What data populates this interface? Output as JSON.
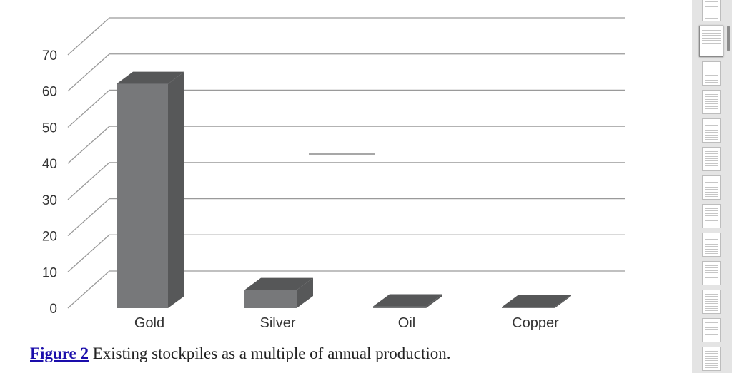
{
  "chart_data": {
    "type": "bar",
    "categories": [
      "Gold",
      "Silver",
      "Oil",
      "Copper"
    ],
    "values": [
      62,
      5,
      0.5,
      0.3
    ],
    "title": "",
    "xlabel": "",
    "ylabel": "",
    "ylim": [
      0,
      70
    ],
    "yticks": [
      0,
      10,
      20,
      30,
      40,
      50,
      60,
      70
    ],
    "grid": true,
    "style": "3d",
    "bar_colors": {
      "front": "#77787a",
      "side": "#575859",
      "top": "#565758"
    },
    "gridline_color": "#9a9a9a"
  },
  "caption": {
    "link_text": "Figure 2",
    "text": " Existing stockpiles as a multiple of annual production."
  },
  "sidebar": {
    "thumbnail_count": 13,
    "active_index": 1
  }
}
